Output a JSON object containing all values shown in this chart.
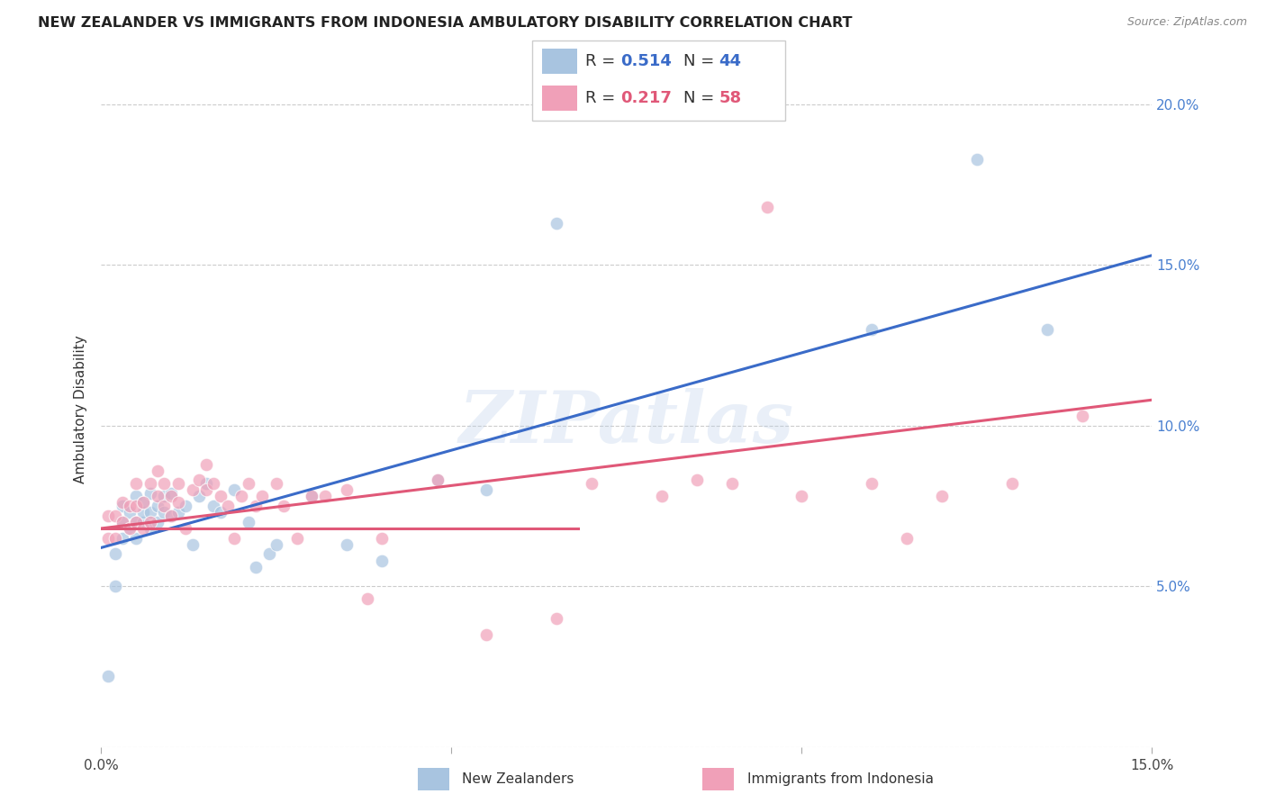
{
  "title": "NEW ZEALANDER VS IMMIGRANTS FROM INDONESIA AMBULATORY DISABILITY CORRELATION CHART",
  "source": "Source: ZipAtlas.com",
  "ylabel": "Ambulatory Disability",
  "xlim": [
    0.0,
    0.15
  ],
  "ylim": [
    0.0,
    0.21
  ],
  "blue_R": 0.514,
  "blue_N": 44,
  "pink_R": 0.217,
  "pink_N": 58,
  "blue_color": "#a8c4e0",
  "pink_color": "#f0a0b8",
  "blue_line_color": "#3a6bc8",
  "pink_line_color": "#e05878",
  "legend_blue_label": "New Zealanders",
  "legend_pink_label": "Immigrants from Indonesia",
  "watermark": "ZIPatlas",
  "blue_x": [
    0.001,
    0.002,
    0.002,
    0.003,
    0.003,
    0.003,
    0.004,
    0.004,
    0.005,
    0.005,
    0.005,
    0.006,
    0.006,
    0.006,
    0.007,
    0.007,
    0.007,
    0.008,
    0.008,
    0.009,
    0.009,
    0.01,
    0.01,
    0.011,
    0.012,
    0.013,
    0.014,
    0.015,
    0.016,
    0.017,
    0.019,
    0.021,
    0.022,
    0.024,
    0.025,
    0.03,
    0.035,
    0.04,
    0.048,
    0.055,
    0.065,
    0.11,
    0.125,
    0.135
  ],
  "blue_y": [
    0.022,
    0.05,
    0.06,
    0.065,
    0.07,
    0.075,
    0.068,
    0.073,
    0.065,
    0.07,
    0.078,
    0.07,
    0.073,
    0.076,
    0.068,
    0.073,
    0.079,
    0.07,
    0.075,
    0.073,
    0.078,
    0.072,
    0.079,
    0.073,
    0.075,
    0.063,
    0.078,
    0.082,
    0.075,
    0.073,
    0.08,
    0.07,
    0.056,
    0.06,
    0.063,
    0.078,
    0.063,
    0.058,
    0.083,
    0.08,
    0.163,
    0.13,
    0.183,
    0.13
  ],
  "pink_x": [
    0.001,
    0.001,
    0.002,
    0.002,
    0.003,
    0.003,
    0.004,
    0.004,
    0.005,
    0.005,
    0.005,
    0.006,
    0.006,
    0.007,
    0.007,
    0.008,
    0.008,
    0.009,
    0.009,
    0.01,
    0.01,
    0.011,
    0.011,
    0.012,
    0.013,
    0.014,
    0.015,
    0.015,
    0.016,
    0.017,
    0.018,
    0.019,
    0.02,
    0.021,
    0.022,
    0.023,
    0.025,
    0.026,
    0.028,
    0.03,
    0.032,
    0.035,
    0.038,
    0.04,
    0.048,
    0.055,
    0.065,
    0.07,
    0.08,
    0.085,
    0.09,
    0.095,
    0.1,
    0.11,
    0.115,
    0.12,
    0.13,
    0.14
  ],
  "pink_y": [
    0.065,
    0.072,
    0.065,
    0.072,
    0.07,
    0.076,
    0.068,
    0.075,
    0.07,
    0.075,
    0.082,
    0.068,
    0.076,
    0.07,
    0.082,
    0.078,
    0.086,
    0.075,
    0.082,
    0.072,
    0.078,
    0.076,
    0.082,
    0.068,
    0.08,
    0.083,
    0.08,
    0.088,
    0.082,
    0.078,
    0.075,
    0.065,
    0.078,
    0.082,
    0.075,
    0.078,
    0.082,
    0.075,
    0.065,
    0.078,
    0.078,
    0.08,
    0.046,
    0.065,
    0.083,
    0.035,
    0.04,
    0.082,
    0.078,
    0.083,
    0.082,
    0.168,
    0.078,
    0.082,
    0.065,
    0.078,
    0.082,
    0.103
  ]
}
